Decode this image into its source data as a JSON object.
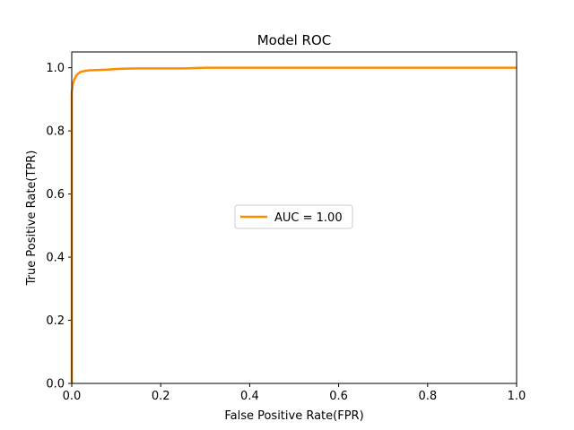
{
  "chart_data": {
    "type": "line",
    "title": "Model ROC",
    "xlabel": "False Positive Rate(FPR)",
    "ylabel": "True Positive Rate(TPR)",
    "xlim": [
      0.0,
      1.0
    ],
    "ylim": [
      0.0,
      1.05
    ],
    "x_ticks": [
      "0.0",
      "0.2",
      "0.4",
      "0.6",
      "0.8",
      "1.0"
    ],
    "y_ticks": [
      "0.0",
      "0.2",
      "0.4",
      "0.6",
      "0.8",
      "1.0"
    ],
    "grid": false,
    "legend_position": "center",
    "series": [
      {
        "name": "AUC = 1.00",
        "color": "#ff8c00",
        "x": [
          0.0,
          0.0,
          0.002,
          0.005,
          0.01,
          0.015,
          0.02,
          0.03,
          0.04,
          0.06,
          0.08,
          0.1,
          0.12,
          0.15,
          0.2,
          0.25,
          0.3,
          0.4,
          0.5,
          0.6,
          0.7,
          0.8,
          0.9,
          1.0
        ],
        "y": [
          0.0,
          0.92,
          0.945,
          0.96,
          0.975,
          0.982,
          0.987,
          0.99,
          0.992,
          0.993,
          0.994,
          0.996,
          0.997,
          0.998,
          0.998,
          0.998,
          1.0,
          1.0,
          1.0,
          1.0,
          1.0,
          1.0,
          1.0,
          1.0
        ]
      }
    ]
  }
}
